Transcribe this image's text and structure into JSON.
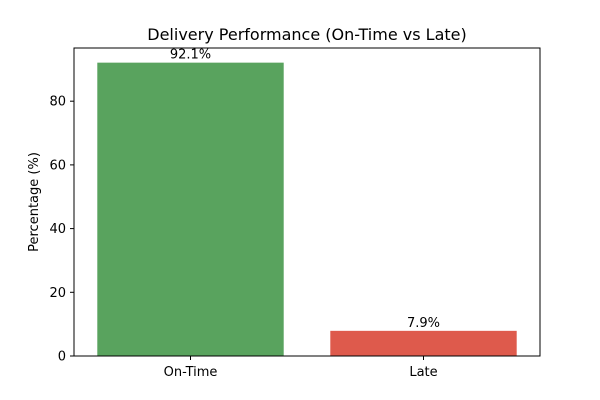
{
  "chart_data": {
    "type": "bar",
    "title": "Delivery Performance (On-Time vs Late)",
    "xlabel": "",
    "ylabel": "Percentage (%)",
    "categories": [
      "On-Time",
      "Late"
    ],
    "values": [
      92.1,
      7.9
    ],
    "data_labels": [
      "92.1%",
      "7.9%"
    ],
    "colors": [
      "#59a35e",
      "#de5a4c"
    ],
    "ylim": [
      0,
      96.7
    ],
    "yticks": [
      0,
      20,
      40,
      60,
      80
    ],
    "grid": false,
    "legend": "none"
  }
}
